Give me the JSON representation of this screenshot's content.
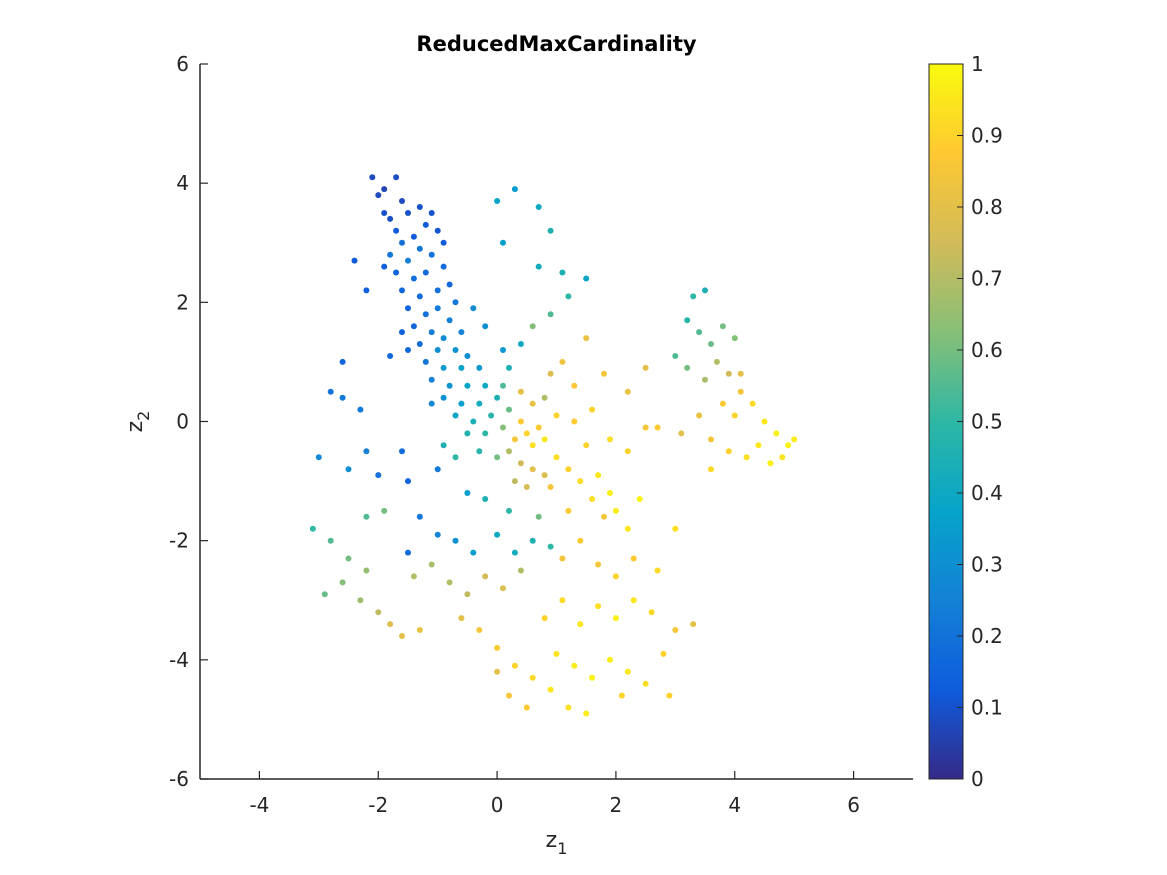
{
  "chart_data": {
    "type": "scatter",
    "title": "ReducedMaxCardinality",
    "xlabel": {
      "base": "z",
      "sub": "1"
    },
    "ylabel": {
      "base": "z",
      "sub": "2"
    },
    "xlim": [
      -5,
      7
    ],
    "ylim": [
      -6,
      6
    ],
    "xticks": [
      -4,
      -2,
      0,
      2,
      4,
      6
    ],
    "yticks": [
      -6,
      -4,
      -2,
      0,
      2,
      4,
      6
    ],
    "grid": false,
    "colorbar": {
      "colormap": "parula",
      "range": [
        0,
        1
      ],
      "ticks": [
        0,
        0.1,
        0.2,
        0.3,
        0.4,
        0.5,
        0.6,
        0.7,
        0.8,
        0.9,
        1
      ],
      "tick_labels": [
        "0",
        "0.1",
        "0.2",
        "0.3",
        "0.4",
        "0.5",
        "0.6",
        "0.7",
        "0.8",
        "0.9",
        "1"
      ],
      "stops": [
        "#352a87",
        "#0f5cdd",
        "#1481d6",
        "#06a4ca",
        "#2eb7a4",
        "#87bf77",
        "#d1bb59",
        "#fec832",
        "#f9fb0e"
      ]
    },
    "points_description": "approximate sample of the depicted point cloud; each entry is [z1, z2, value]",
    "points": [
      [
        -2.1,
        4.1,
        0.08
      ],
      [
        -1.9,
        3.9,
        0.07
      ],
      [
        -1.7,
        4.1,
        0.09
      ],
      [
        -1.6,
        3.7,
        0.08
      ],
      [
        -1.5,
        3.5,
        0.1
      ],
      [
        -1.8,
        3.4,
        0.09
      ],
      [
        -1.3,
        3.6,
        0.1
      ],
      [
        -1.2,
        3.3,
        0.12
      ],
      [
        -1.0,
        3.2,
        0.11
      ],
      [
        -0.9,
        3.0,
        0.13
      ],
      [
        -1.4,
        3.1,
        0.12
      ],
      [
        -1.7,
        3.2,
        0.12
      ],
      [
        -1.9,
        3.5,
        0.1
      ],
      [
        -2.0,
        3.8,
        0.08
      ],
      [
        -1.1,
        3.5,
        0.1
      ],
      [
        -1.6,
        3.0,
        0.2
      ],
      [
        -1.8,
        2.8,
        0.22
      ],
      [
        -1.5,
        2.7,
        0.24
      ],
      [
        -1.3,
        2.9,
        0.21
      ],
      [
        -1.1,
        2.8,
        0.2
      ],
      [
        -0.9,
        2.6,
        0.18
      ],
      [
        -1.2,
        2.5,
        0.17
      ],
      [
        -1.4,
        2.4,
        0.19
      ],
      [
        -1.7,
        2.5,
        0.15
      ],
      [
        -1.9,
        2.6,
        0.14
      ],
      [
        -1.6,
        2.2,
        0.16
      ],
      [
        -1.3,
        2.1,
        0.18
      ],
      [
        -1.0,
        2.2,
        0.2
      ],
      [
        -0.8,
        2.3,
        0.17
      ],
      [
        -0.7,
        2.0,
        0.22
      ],
      [
        -1.5,
        1.9,
        0.15
      ],
      [
        -1.2,
        1.8,
        0.2
      ],
      [
        -1.0,
        1.9,
        0.23
      ],
      [
        -0.8,
        1.7,
        0.25
      ],
      [
        -1.4,
        1.6,
        0.16
      ],
      [
        -1.6,
        1.5,
        0.14
      ],
      [
        -1.1,
        1.5,
        0.24
      ],
      [
        -0.9,
        1.4,
        0.28
      ],
      [
        -0.6,
        1.5,
        0.26
      ],
      [
        -1.3,
        1.3,
        0.18
      ],
      [
        -1.5,
        1.2,
        0.17
      ],
      [
        -1.0,
        1.2,
        0.3
      ],
      [
        -0.7,
        1.2,
        0.32
      ],
      [
        -0.5,
        1.1,
        0.3
      ],
      [
        -1.2,
        1.0,
        0.22
      ],
      [
        -0.9,
        0.9,
        0.34
      ],
      [
        -0.6,
        0.9,
        0.36
      ],
      [
        -0.3,
        0.9,
        0.33
      ],
      [
        -1.1,
        0.7,
        0.25
      ],
      [
        -0.8,
        0.6,
        0.32
      ],
      [
        -0.5,
        0.6,
        0.38
      ],
      [
        -0.2,
        0.6,
        0.4
      ],
      [
        -0.9,
        0.4,
        0.3
      ],
      [
        -0.6,
        0.3,
        0.36
      ],
      [
        -0.3,
        0.3,
        0.42
      ],
      [
        0.0,
        0.4,
        0.45
      ],
      [
        -0.7,
        0.1,
        0.38
      ],
      [
        -0.4,
        0.0,
        0.44
      ],
      [
        -0.1,
        0.1,
        0.48
      ],
      [
        0.2,
        0.2,
        0.58
      ],
      [
        -0.5,
        -0.2,
        0.46
      ],
      [
        -0.2,
        -0.2,
        0.5
      ],
      [
        0.1,
        -0.1,
        0.62
      ],
      [
        0.4,
        0.0,
        0.88
      ],
      [
        0.3,
        -0.3,
        0.85
      ],
      [
        0.5,
        -0.2,
        0.9
      ],
      [
        0.6,
        -0.4,
        0.93
      ],
      [
        0.7,
        -0.1,
        0.88
      ],
      [
        0.8,
        -0.3,
        0.95
      ],
      [
        0.2,
        -0.5,
        0.7
      ],
      [
        0.0,
        -0.6,
        0.6
      ],
      [
        -0.3,
        -0.5,
        0.48
      ],
      [
        0.4,
        -0.7,
        0.75
      ],
      [
        0.6,
        -0.8,
        0.8
      ],
      [
        0.8,
        -0.9,
        0.78
      ],
      [
        0.3,
        -1.0,
        0.72
      ],
      [
        0.5,
        -1.1,
        0.76
      ],
      [
        1.0,
        -0.6,
        0.93
      ],
      [
        1.2,
        -0.8,
        0.9
      ],
      [
        0.9,
        -1.1,
        0.85
      ],
      [
        0.1,
        0.6,
        0.55
      ],
      [
        0.4,
        0.5,
        0.8
      ],
      [
        0.6,
        0.3,
        0.82
      ],
      [
        0.8,
        0.4,
        0.7
      ],
      [
        1.0,
        0.1,
        0.9
      ],
      [
        1.3,
        0.0,
        0.88
      ],
      [
        1.5,
        -0.4,
        0.9
      ],
      [
        1.7,
        -0.9,
        0.95
      ],
      [
        1.9,
        -1.2,
        0.97
      ],
      [
        2.0,
        -1.5,
        0.96
      ],
      [
        1.6,
        -1.3,
        0.93
      ],
      [
        1.4,
        -1.0,
        0.92
      ],
      [
        2.2,
        -1.8,
        0.95
      ],
      [
        2.4,
        -1.3,
        0.98
      ],
      [
        1.8,
        -1.6,
        0.85
      ],
      [
        0.6,
        1.6,
        0.62
      ],
      [
        0.9,
        1.8,
        0.55
      ],
      [
        1.2,
        2.1,
        0.5
      ],
      [
        1.5,
        1.4,
        0.82
      ],
      [
        1.8,
        0.8,
        0.85
      ],
      [
        2.2,
        0.5,
        0.82
      ],
      [
        1.1,
        1.0,
        0.84
      ],
      [
        0.7,
        2.6,
        0.42
      ],
      [
        1.1,
        2.5,
        0.45
      ],
      [
        1.5,
        2.4,
        0.38
      ],
      [
        0.3,
        3.9,
        0.35
      ],
      [
        0.0,
        3.7,
        0.38
      ],
      [
        0.7,
        3.6,
        0.4
      ],
      [
        0.1,
        3.0,
        0.36
      ],
      [
        0.9,
        3.2,
        0.45
      ],
      [
        -2.4,
        2.7,
        0.12
      ],
      [
        -2.6,
        1.0,
        0.15
      ],
      [
        -2.8,
        0.5,
        0.2
      ],
      [
        -2.3,
        0.2,
        0.22
      ],
      [
        -2.2,
        -0.5,
        0.25
      ],
      [
        -3.0,
        -0.6,
        0.28
      ],
      [
        -2.5,
        -0.8,
        0.3
      ],
      [
        -2.0,
        -0.9,
        0.2
      ],
      [
        -1.5,
        -1.0,
        0.15
      ],
      [
        -1.0,
        -0.8,
        0.22
      ],
      [
        -0.5,
        -1.2,
        0.35
      ],
      [
        -1.3,
        -1.6,
        0.22
      ],
      [
        -1.0,
        -1.9,
        0.26
      ],
      [
        -0.7,
        -2.0,
        0.3
      ],
      [
        -1.5,
        -2.2,
        0.18
      ],
      [
        -0.4,
        -2.2,
        0.35
      ],
      [
        0.0,
        -1.9,
        0.4
      ],
      [
        0.3,
        -2.2,
        0.42
      ],
      [
        0.6,
        -2.0,
        0.45
      ],
      [
        0.9,
        -2.1,
        0.5
      ],
      [
        -3.1,
        -1.8,
        0.5
      ],
      [
        -2.8,
        -2.0,
        0.55
      ],
      [
        -2.5,
        -2.3,
        0.6
      ],
      [
        -2.2,
        -2.5,
        0.65
      ],
      [
        -2.6,
        -2.7,
        0.62
      ],
      [
        -2.9,
        -2.9,
        0.58
      ],
      [
        -2.3,
        -3.0,
        0.66
      ],
      [
        -2.0,
        -3.2,
        0.72
      ],
      [
        -1.8,
        -3.4,
        0.78
      ],
      [
        -1.6,
        -3.6,
        0.8
      ],
      [
        -1.3,
        -3.5,
        0.82
      ],
      [
        -1.9,
        -1.5,
        0.6
      ],
      [
        -2.2,
        -1.6,
        0.55
      ],
      [
        -1.4,
        -2.6,
        0.7
      ],
      [
        -1.1,
        -2.4,
        0.68
      ],
      [
        -0.8,
        -2.7,
        0.7
      ],
      [
        -0.5,
        -2.9,
        0.72
      ],
      [
        -0.2,
        -2.6,
        0.75
      ],
      [
        0.1,
        -2.8,
        0.78
      ],
      [
        0.4,
        -2.5,
        0.7
      ],
      [
        -0.6,
        -3.3,
        0.8
      ],
      [
        -0.3,
        -3.5,
        0.85
      ],
      [
        0.0,
        -3.8,
        0.88
      ],
      [
        0.3,
        -4.1,
        0.9
      ],
      [
        0.6,
        -4.3,
        0.92
      ],
      [
        0.9,
        -4.5,
        0.95
      ],
      [
        1.2,
        -4.8,
        0.93
      ],
      [
        1.5,
        -4.9,
        0.97
      ],
      [
        0.2,
        -4.6,
        0.85
      ],
      [
        0.5,
        -4.8,
        0.88
      ],
      [
        0.8,
        -3.3,
        0.9
      ],
      [
        1.1,
        -3.0,
        0.92
      ],
      [
        1.4,
        -3.4,
        0.95
      ],
      [
        1.7,
        -3.1,
        0.93
      ],
      [
        2.0,
        -3.3,
        0.97
      ],
      [
        2.3,
        -3.0,
        0.95
      ],
      [
        2.6,
        -3.2,
        0.92
      ],
      [
        1.0,
        -3.9,
        0.94
      ],
      [
        1.3,
        -4.1,
        0.96
      ],
      [
        1.6,
        -4.3,
        0.98
      ],
      [
        1.9,
        -4.0,
        0.97
      ],
      [
        2.2,
        -4.2,
        0.95
      ],
      [
        2.5,
        -4.4,
        0.93
      ],
      [
        2.8,
        -3.9,
        0.9
      ],
      [
        3.0,
        -3.5,
        0.85
      ],
      [
        3.3,
        -3.4,
        0.8
      ],
      [
        2.7,
        -2.5,
        0.92
      ],
      [
        2.3,
        -2.3,
        0.88
      ],
      [
        2.0,
        -2.6,
        0.9
      ],
      [
        1.7,
        -2.4,
        0.85
      ],
      [
        1.4,
        -2.0,
        0.88
      ],
      [
        1.1,
        -2.3,
        0.84
      ],
      [
        2.9,
        -4.6,
        0.9
      ],
      [
        2.1,
        -4.6,
        0.9
      ],
      [
        0.0,
        -4.2,
        0.8
      ],
      [
        3.0,
        1.1,
        0.55
      ],
      [
        3.2,
        1.7,
        0.48
      ],
      [
        3.3,
        2.1,
        0.5
      ],
      [
        3.5,
        2.2,
        0.45
      ],
      [
        3.4,
        1.5,
        0.55
      ],
      [
        3.6,
        1.3,
        0.58
      ],
      [
        3.8,
        1.6,
        0.6
      ],
      [
        4.0,
        1.4,
        0.62
      ],
      [
        3.7,
        1.0,
        0.7
      ],
      [
        3.9,
        0.8,
        0.75
      ],
      [
        3.5,
        0.7,
        0.68
      ],
      [
        3.2,
        0.9,
        0.6
      ],
      [
        4.1,
        0.5,
        0.85
      ],
      [
        3.8,
        0.3,
        0.88
      ],
      [
        4.0,
        0.1,
        0.9
      ],
      [
        4.3,
        0.3,
        0.92
      ],
      [
        4.5,
        0.0,
        0.95
      ],
      [
        4.7,
        -0.2,
        0.97
      ],
      [
        4.9,
        -0.4,
        0.98
      ],
      [
        5.0,
        -0.3,
        0.96
      ],
      [
        4.4,
        -0.4,
        0.95
      ],
      [
        4.2,
        -0.6,
        0.93
      ],
      [
        3.9,
        -0.5,
        0.9
      ],
      [
        3.6,
        -0.3,
        0.85
      ],
      [
        3.4,
        0.1,
        0.82
      ],
      [
        3.1,
        -0.2,
        0.8
      ],
      [
        4.6,
        -0.7,
        0.97
      ],
      [
        4.8,
        -0.6,
        0.94
      ],
      [
        4.1,
        0.8,
        0.8
      ],
      [
        3.6,
        -0.8,
        0.92
      ],
      [
        2.5,
        -0.1,
        0.85
      ],
      [
        2.7,
        -0.1,
        0.88
      ],
      [
        3.0,
        -1.8,
        0.93
      ],
      [
        2.2,
        -0.5,
        0.9
      ],
      [
        2.5,
        0.9,
        0.8
      ],
      [
        -1.6,
        -0.5,
        0.18
      ],
      [
        -2.6,
        0.4,
        0.22
      ],
      [
        -1.1,
        0.3,
        0.28
      ],
      [
        -1.8,
        1.1,
        0.16
      ],
      [
        -2.2,
        2.2,
        0.14
      ],
      [
        -0.2,
        1.6,
        0.3
      ],
      [
        -0.4,
        1.9,
        0.28
      ],
      [
        0.1,
        1.2,
        0.32
      ],
      [
        0.4,
        1.3,
        0.4
      ],
      [
        0.2,
        0.9,
        0.45
      ],
      [
        -0.7,
        -0.6,
        0.5
      ],
      [
        -0.9,
        -0.4,
        0.45
      ],
      [
        0.9,
        0.8,
        0.78
      ],
      [
        1.3,
        0.6,
        0.86
      ],
      [
        1.6,
        0.2,
        0.9
      ],
      [
        1.9,
        -0.3,
        0.93
      ],
      [
        1.2,
        -1.5,
        0.88
      ],
      [
        0.7,
        -1.6,
        0.6
      ],
      [
        0.2,
        -1.5,
        0.5
      ],
      [
        -0.2,
        -1.3,
        0.45
      ]
    ]
  }
}
